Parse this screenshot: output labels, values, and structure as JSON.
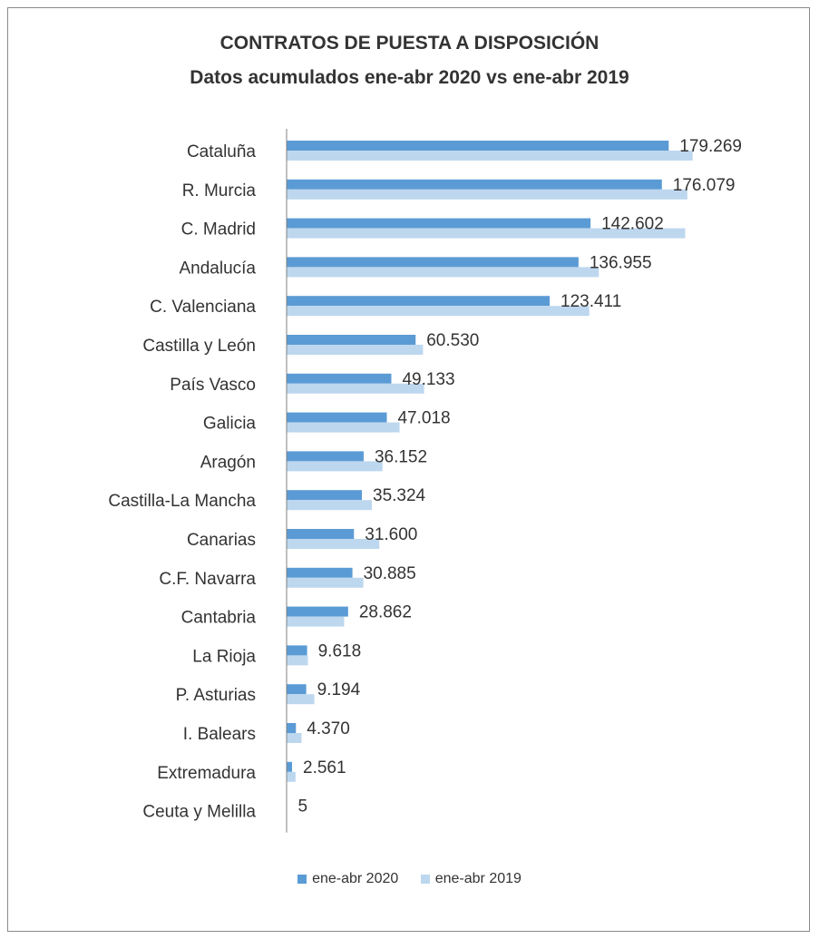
{
  "chart_data": {
    "type": "bar",
    "orientation": "horizontal",
    "title": "CONTRATOS DE PUESTA A DISPOSICIÓN",
    "subtitle": "Datos acumulados ene-abr 2020 vs ene-abr 2019",
    "categories": [
      "Cataluña",
      "R. Murcia",
      "C. Madrid",
      "Andalucía",
      "C. Valenciana",
      "Castilla y León",
      "País Vasco",
      "Galicia",
      "Aragón",
      "Castilla-La Mancha",
      "Canarias",
      "C.F. Navarra",
      "Cantabria",
      "La Rioja",
      "P. Asturias",
      "I. Balears",
      "Extremadura",
      "Ceuta y Melilla"
    ],
    "series": [
      {
        "name": "ene-abr 2020",
        "color": "#5b9bd5",
        "values": [
          179269,
          176079,
          142602,
          136955,
          123411,
          60530,
          49133,
          47018,
          36152,
          35324,
          31600,
          30885,
          28862,
          9618,
          9194,
          4370,
          2561,
          5
        ]
      },
      {
        "name": "ene-abr 2019",
        "color": "#bdd7ee",
        "values": [
          190500,
          188000,
          187000,
          146500,
          142000,
          64000,
          64500,
          53000,
          45000,
          40000,
          43500,
          36000,
          27000,
          10000,
          13000,
          7000,
          4200,
          5
        ]
      }
    ],
    "data_labels": [
      "179.269",
      "176.079",
      "142.602",
      "136.955",
      "123.411",
      "60.530",
      "49.133",
      "47.018",
      "36.152",
      "35.324",
      "31.600",
      "30.885",
      "28.862",
      "9.618",
      "9.194",
      "4.370",
      "2.561",
      "5"
    ],
    "xlim": [
      0,
      200000
    ],
    "grid": false,
    "legend_position": "bottom"
  }
}
